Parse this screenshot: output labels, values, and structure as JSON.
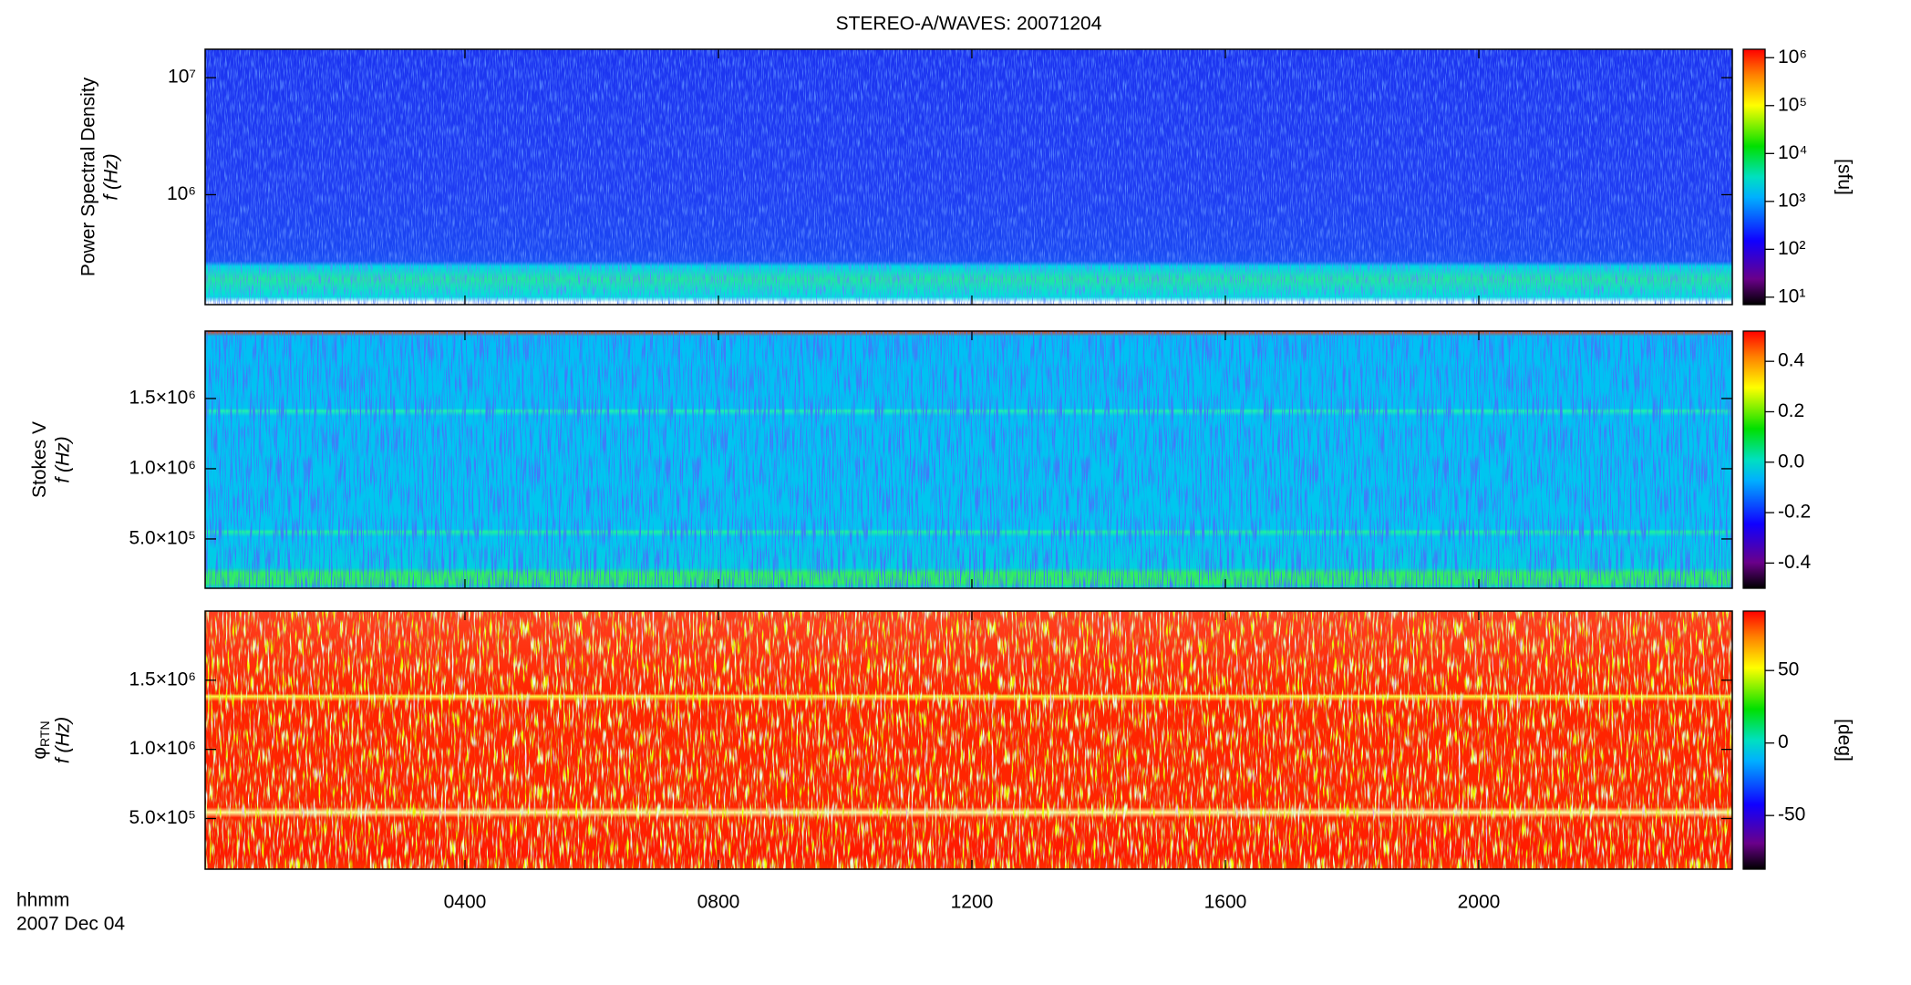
{
  "chart_data": [
    {
      "type": "spectrogram",
      "title": "STEREO-A/WAVES: 20071204",
      "ylabel": "Power Spectral Density",
      "ylabel_unit": "f (Hz)",
      "yscale": "log",
      "ylim": [
        115000,
        17500000
      ],
      "yticks": [
        {
          "value": 1000000,
          "label": "10⁶"
        },
        {
          "value": 10000000,
          "label": "10⁷"
        }
      ],
      "colorbar": {
        "label": "[sfu]",
        "scale": "log",
        "lim": [
          7,
          1500000
        ],
        "ticks": [
          {
            "value": 10,
            "label": "10¹"
          },
          {
            "value": 100,
            "label": "10²"
          },
          {
            "value": 1000,
            "label": "10³"
          },
          {
            "value": 10000,
            "label": "10⁴"
          },
          {
            "value": 100000,
            "label": "10⁵"
          },
          {
            "value": 1000000,
            "label": "10⁶"
          }
        ]
      }
    },
    {
      "type": "spectrogram",
      "ylabel": "Stokes V",
      "ylabel_unit": "f (Hz)",
      "yscale": "linear",
      "ylim": [
        149000,
        1980000
      ],
      "yticks": [
        {
          "value": 500000,
          "label": "5.0×10⁵"
        },
        {
          "value": 1000000,
          "label": "1.0×10⁶"
        },
        {
          "value": 1500000,
          "label": "1.5×10⁶"
        }
      ],
      "colorbar": {
        "scale": "linear",
        "lim": [
          -0.5,
          0.52
        ],
        "ticks": [
          -0.4,
          -0.2,
          {
            "value": 0,
            "label": "0.0"
          },
          0.2,
          0.4
        ]
      }
    },
    {
      "type": "spectrogram",
      "ylabel": "φ",
      "ylabel_sub": "RTN",
      "ylabel_unit": "f (Hz)",
      "yscale": "linear",
      "ylim": [
        134000,
        2000000
      ],
      "yticks": [
        {
          "value": 500000,
          "label": "5.0×10⁵"
        },
        {
          "value": 1000000,
          "label": "1.0×10⁶"
        },
        {
          "value": 1500000,
          "label": "1.5×10⁶"
        }
      ],
      "colorbar": {
        "label": "[deg]",
        "scale": "linear",
        "lim": [
          -87,
          91
        ],
        "ticks": [
          -50,
          0,
          50
        ]
      },
      "xlabel": "hhmm",
      "date": "2007 Dec 04",
      "xlim": [
        -0.1,
        24
      ],
      "xticks": [
        {
          "value": 4,
          "label": "0400"
        },
        {
          "value": 8,
          "label": "0800"
        },
        {
          "value": 12,
          "label": "1200"
        },
        {
          "value": 16,
          "label": "1600"
        },
        {
          "value": 20,
          "label": "2000"
        }
      ]
    }
  ]
}
